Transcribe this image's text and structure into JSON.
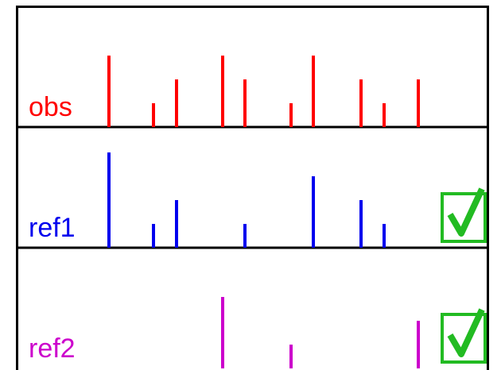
{
  "panels": [
    {
      "label": "obs",
      "color": "#ff0000",
      "x": [
        137,
        193,
        222,
        280,
        308,
        366,
        394,
        454,
        483,
        526
      ],
      "values": [
        3,
        1,
        2,
        3,
        2,
        1,
        3,
        2,
        1,
        2
      ],
      "match": false
    },
    {
      "label": "ref1",
      "color": "#0000ee",
      "x": [
        137,
        193,
        222,
        308,
        394,
        454,
        483
      ],
      "values": [
        4,
        1,
        2,
        1,
        3,
        2,
        1
      ],
      "match": true
    },
    {
      "label": "ref2",
      "color": "#cc00cc",
      "x": [
        280,
        366,
        526
      ],
      "values": [
        3,
        1,
        2
      ],
      "match": true
    }
  ],
  "xlim": [
    0,
    630
  ],
  "ylim": [
    0,
    4
  ]
}
